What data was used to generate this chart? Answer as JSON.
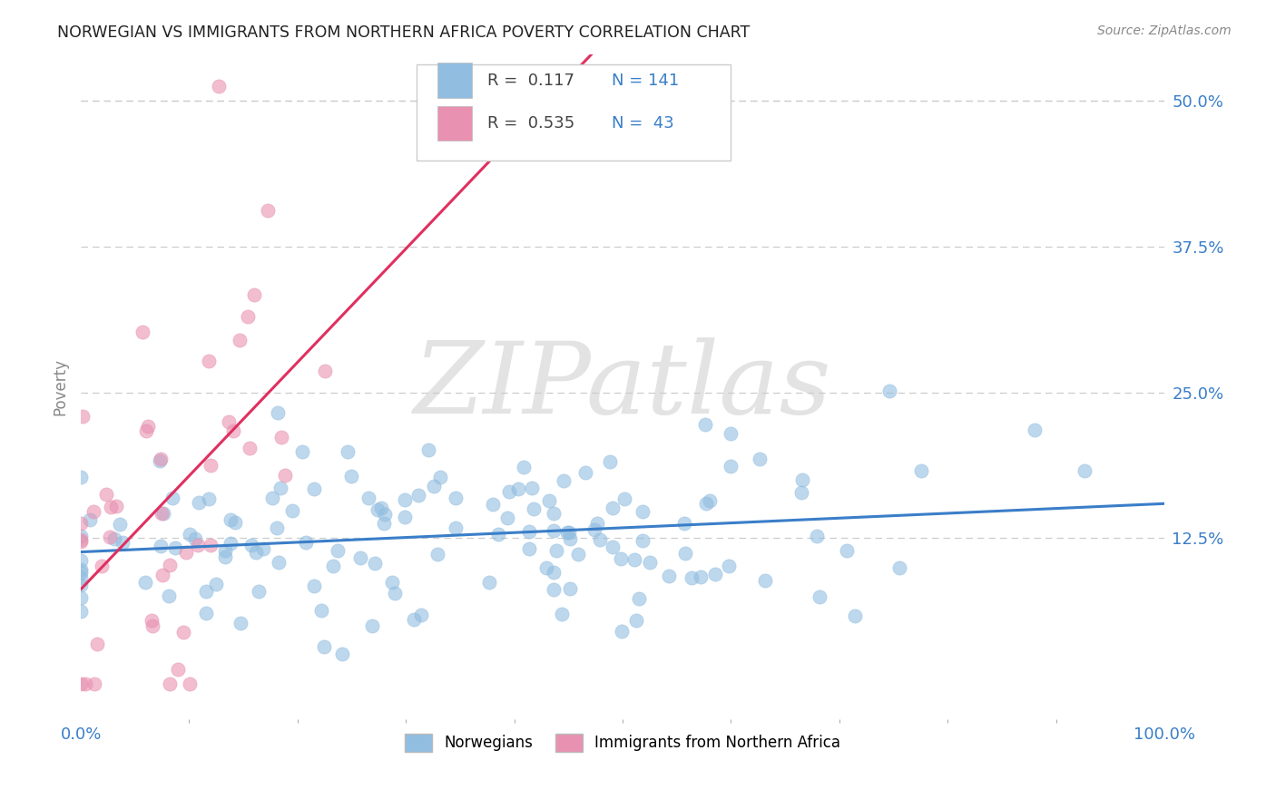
{
  "title": "NORWEGIAN VS IMMIGRANTS FROM NORTHERN AFRICA POVERTY CORRELATION CHART",
  "source_text": "Source: ZipAtlas.com",
  "ylabel": "Poverty",
  "xlim": [
    0,
    100
  ],
  "ylim": [
    -3,
    54
  ],
  "yticks": [
    12.5,
    25.0,
    37.5,
    50.0
  ],
  "ytick_labels": [
    "12.5%",
    "25.0%",
    "37.5%",
    "50.0%"
  ],
  "xtick_labels": [
    "0.0%",
    "100.0%"
  ],
  "watermark": "ZIPatlas",
  "norwegian_color": "#91bde0",
  "immigrant_color": "#e891b0",
  "norwegian_trend_color": "#3a7ec8",
  "immigrant_trend_color": "#e03060",
  "background_color": "#ffffff",
  "grid_color": "#cccccc",
  "title_color": "#222222",
  "R_norwegian": 0.117,
  "N_norwegian": 141,
  "R_immigrant": 0.535,
  "N_immigrant": 43,
  "legend_color": "#3a7ec8",
  "leg_r_color": "#333333",
  "seed": 99
}
